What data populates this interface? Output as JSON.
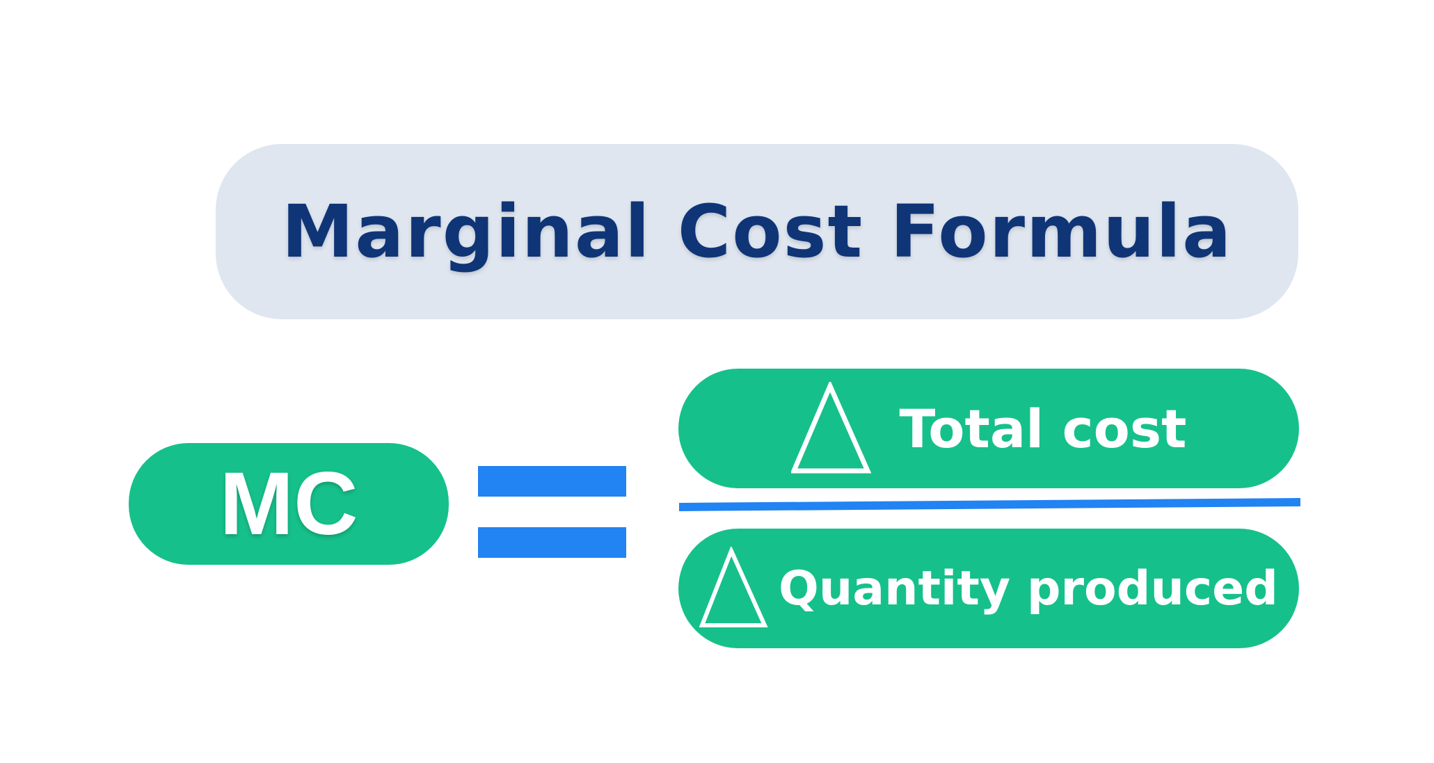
{
  "title": "Marginal Cost Formula",
  "lhs": "MC",
  "equals_icon": "equals-sign",
  "numerator": {
    "icon": "delta-triangle-icon",
    "label": "Total cost"
  },
  "denominator": {
    "icon": "delta-triangle-icon",
    "label": "Quantity produced"
  },
  "colors": {
    "title_bg": "#dfe6f0",
    "title_text": "#0f3577",
    "pill": "#16c08b",
    "accent": "#2283f2"
  }
}
